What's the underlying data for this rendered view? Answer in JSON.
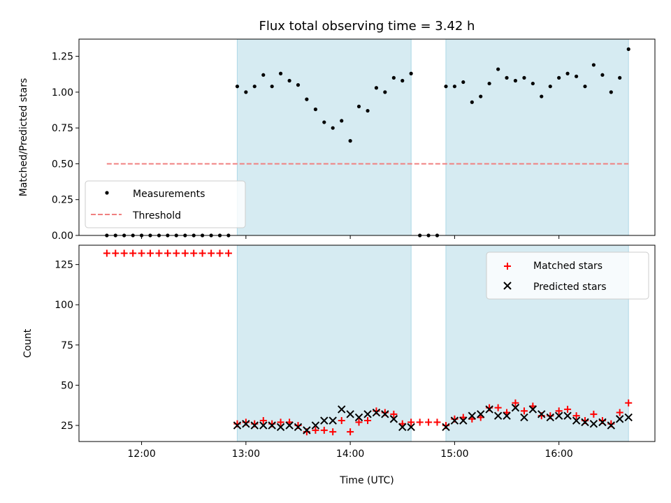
{
  "chart_data": [
    {
      "type": "scatter",
      "title": "Flux total observing time = 3.42 h",
      "xlabel": "",
      "ylabel": "Matched/Predicted stars",
      "ylim": [
        0,
        1.37
      ],
      "yticks": [
        "0.00",
        "0.25",
        "0.50",
        "0.75",
        "1.00",
        "1.25"
      ],
      "x_unit": "hours UTC",
      "grid": false,
      "legend": {
        "position": "lower-left",
        "entries": [
          "Measurements",
          "Threshold"
        ]
      },
      "shaded_intervals": [
        [
          "12:55",
          "14:35"
        ],
        [
          "14:55",
          "16:40"
        ]
      ],
      "threshold": {
        "name": "Threshold",
        "y": 0.5,
        "x_start": "11:40",
        "x_end": "16:40",
        "color": "#f08080"
      },
      "series": [
        {
          "name": "Measurements",
          "marker": "dot",
          "color": "#000000",
          "x": [
            11.667,
            11.75,
            11.833,
            11.917,
            12.0,
            12.083,
            12.167,
            12.25,
            12.333,
            12.417,
            12.5,
            12.583,
            12.667,
            12.75,
            12.833,
            12.917,
            13.0,
            13.083,
            13.167,
            13.25,
            13.333,
            13.417,
            13.5,
            13.583,
            13.667,
            13.75,
            13.833,
            13.917,
            14.0,
            14.083,
            14.167,
            14.25,
            14.333,
            14.417,
            14.5,
            14.583,
            14.667,
            14.75,
            14.833,
            14.917,
            15.0,
            15.083,
            15.167,
            15.25,
            15.333,
            15.417,
            15.5,
            15.583,
            15.667,
            15.75,
            15.833,
            15.917,
            16.0,
            16.083,
            16.167,
            16.25,
            16.333,
            16.417,
            16.5,
            16.583,
            16.667
          ],
          "y": [
            0,
            0,
            0,
            0,
            0,
            0,
            0,
            0,
            0,
            0,
            0,
            0,
            0,
            0,
            0,
            1.04,
            1.0,
            1.04,
            1.12,
            1.04,
            1.13,
            1.08,
            1.05,
            0.95,
            0.88,
            0.79,
            0.75,
            0.8,
            0.66,
            0.9,
            0.87,
            1.03,
            1.0,
            1.1,
            1.08,
            1.13,
            0,
            0,
            0,
            1.04,
            1.04,
            1.07,
            0.93,
            0.97,
            1.06,
            1.16,
            1.1,
            1.08,
            1.1,
            1.06,
            0.97,
            1.04,
            1.1,
            1.13,
            1.11,
            1.04,
            1.19,
            1.12,
            1.0,
            1.1,
            1.3
          ]
        }
      ]
    },
    {
      "type": "scatter",
      "title": "",
      "xlabel": "Time (UTC)",
      "ylabel": "Count",
      "ylim": [
        15,
        137
      ],
      "yticks": [
        "25",
        "50",
        "75",
        "100",
        "125"
      ],
      "xticks": [
        "12:00",
        "13:00",
        "14:00",
        "15:00",
        "16:00"
      ],
      "grid": false,
      "legend": {
        "position": "top-right",
        "entries": [
          "Matched stars",
          "Predicted stars"
        ]
      },
      "shaded_intervals": [
        [
          "12:55",
          "14:35"
        ],
        [
          "14:55",
          "16:40"
        ]
      ],
      "series": [
        {
          "name": "Matched stars",
          "marker": "plus",
          "color": "#ff0000",
          "x": [
            11.667,
            11.75,
            11.833,
            11.917,
            12.0,
            12.083,
            12.167,
            12.25,
            12.333,
            12.417,
            12.5,
            12.583,
            12.667,
            12.75,
            12.833,
            12.917,
            13.0,
            13.083,
            13.167,
            13.25,
            13.333,
            13.417,
            13.5,
            13.583,
            13.667,
            13.75,
            13.833,
            13.917,
            14.0,
            14.083,
            14.167,
            14.25,
            14.333,
            14.417,
            14.5,
            14.583,
            14.667,
            14.75,
            14.833,
            14.917,
            15.0,
            15.083,
            15.167,
            15.25,
            15.333,
            15.417,
            15.5,
            15.583,
            15.667,
            15.75,
            15.833,
            15.917,
            16.0,
            16.083,
            16.167,
            16.25,
            16.333,
            16.417,
            16.5,
            16.583,
            16.667
          ],
          "y": [
            132,
            132,
            132,
            132,
            132,
            132,
            132,
            132,
            132,
            132,
            132,
            132,
            132,
            132,
            132,
            26,
            27,
            26,
            28,
            26,
            27,
            27,
            25,
            21,
            22,
            22,
            21,
            28,
            21,
            27,
            28,
            34,
            33,
            32,
            26,
            27,
            27,
            27,
            27,
            25,
            29,
            30,
            29,
            30,
            36,
            36,
            33,
            39,
            34,
            37,
            31,
            31,
            34,
            35,
            31,
            28,
            32,
            28,
            26,
            33,
            39
          ]
        },
        {
          "name": "Predicted stars",
          "marker": "x",
          "color": "#000000",
          "x": [
            12.917,
            13.0,
            13.083,
            13.167,
            13.25,
            13.333,
            13.417,
            13.5,
            13.583,
            13.667,
            13.75,
            13.833,
            13.917,
            14.0,
            14.083,
            14.167,
            14.25,
            14.333,
            14.417,
            14.5,
            14.583,
            14.917,
            15.0,
            15.083,
            15.167,
            15.25,
            15.333,
            15.417,
            15.5,
            15.583,
            15.667,
            15.75,
            15.833,
            15.917,
            16.0,
            16.083,
            16.167,
            16.25,
            16.333,
            16.417,
            16.5,
            16.583,
            16.667
          ],
          "y": [
            25,
            26,
            25,
            25,
            25,
            24,
            25,
            24,
            22,
            25,
            28,
            28,
            35,
            32,
            30,
            32,
            33,
            32,
            29,
            24,
            24,
            24,
            28,
            28,
            31,
            32,
            35,
            31,
            31,
            36,
            30,
            35,
            32,
            30,
            31,
            31,
            28,
            27,
            26,
            27,
            25,
            29,
            30
          ]
        }
      ]
    }
  ]
}
